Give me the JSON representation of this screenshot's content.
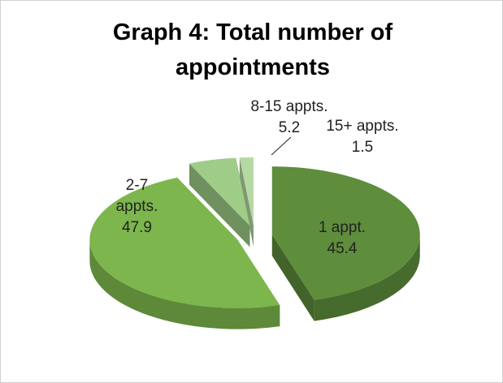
{
  "chart_data": {
    "type": "pie",
    "title": "Graph 4: Total number of appointments",
    "categories": [
      "1 appt.",
      "2-7 appts.",
      "8-15 appts.",
      "15+ appts."
    ],
    "values": [
      45.4,
      47.9,
      5.2,
      1.5
    ],
    "colors": [
      "#5e8d3c",
      "#7cb64c",
      "#9fcd88",
      "#b6d9a4"
    ]
  }
}
